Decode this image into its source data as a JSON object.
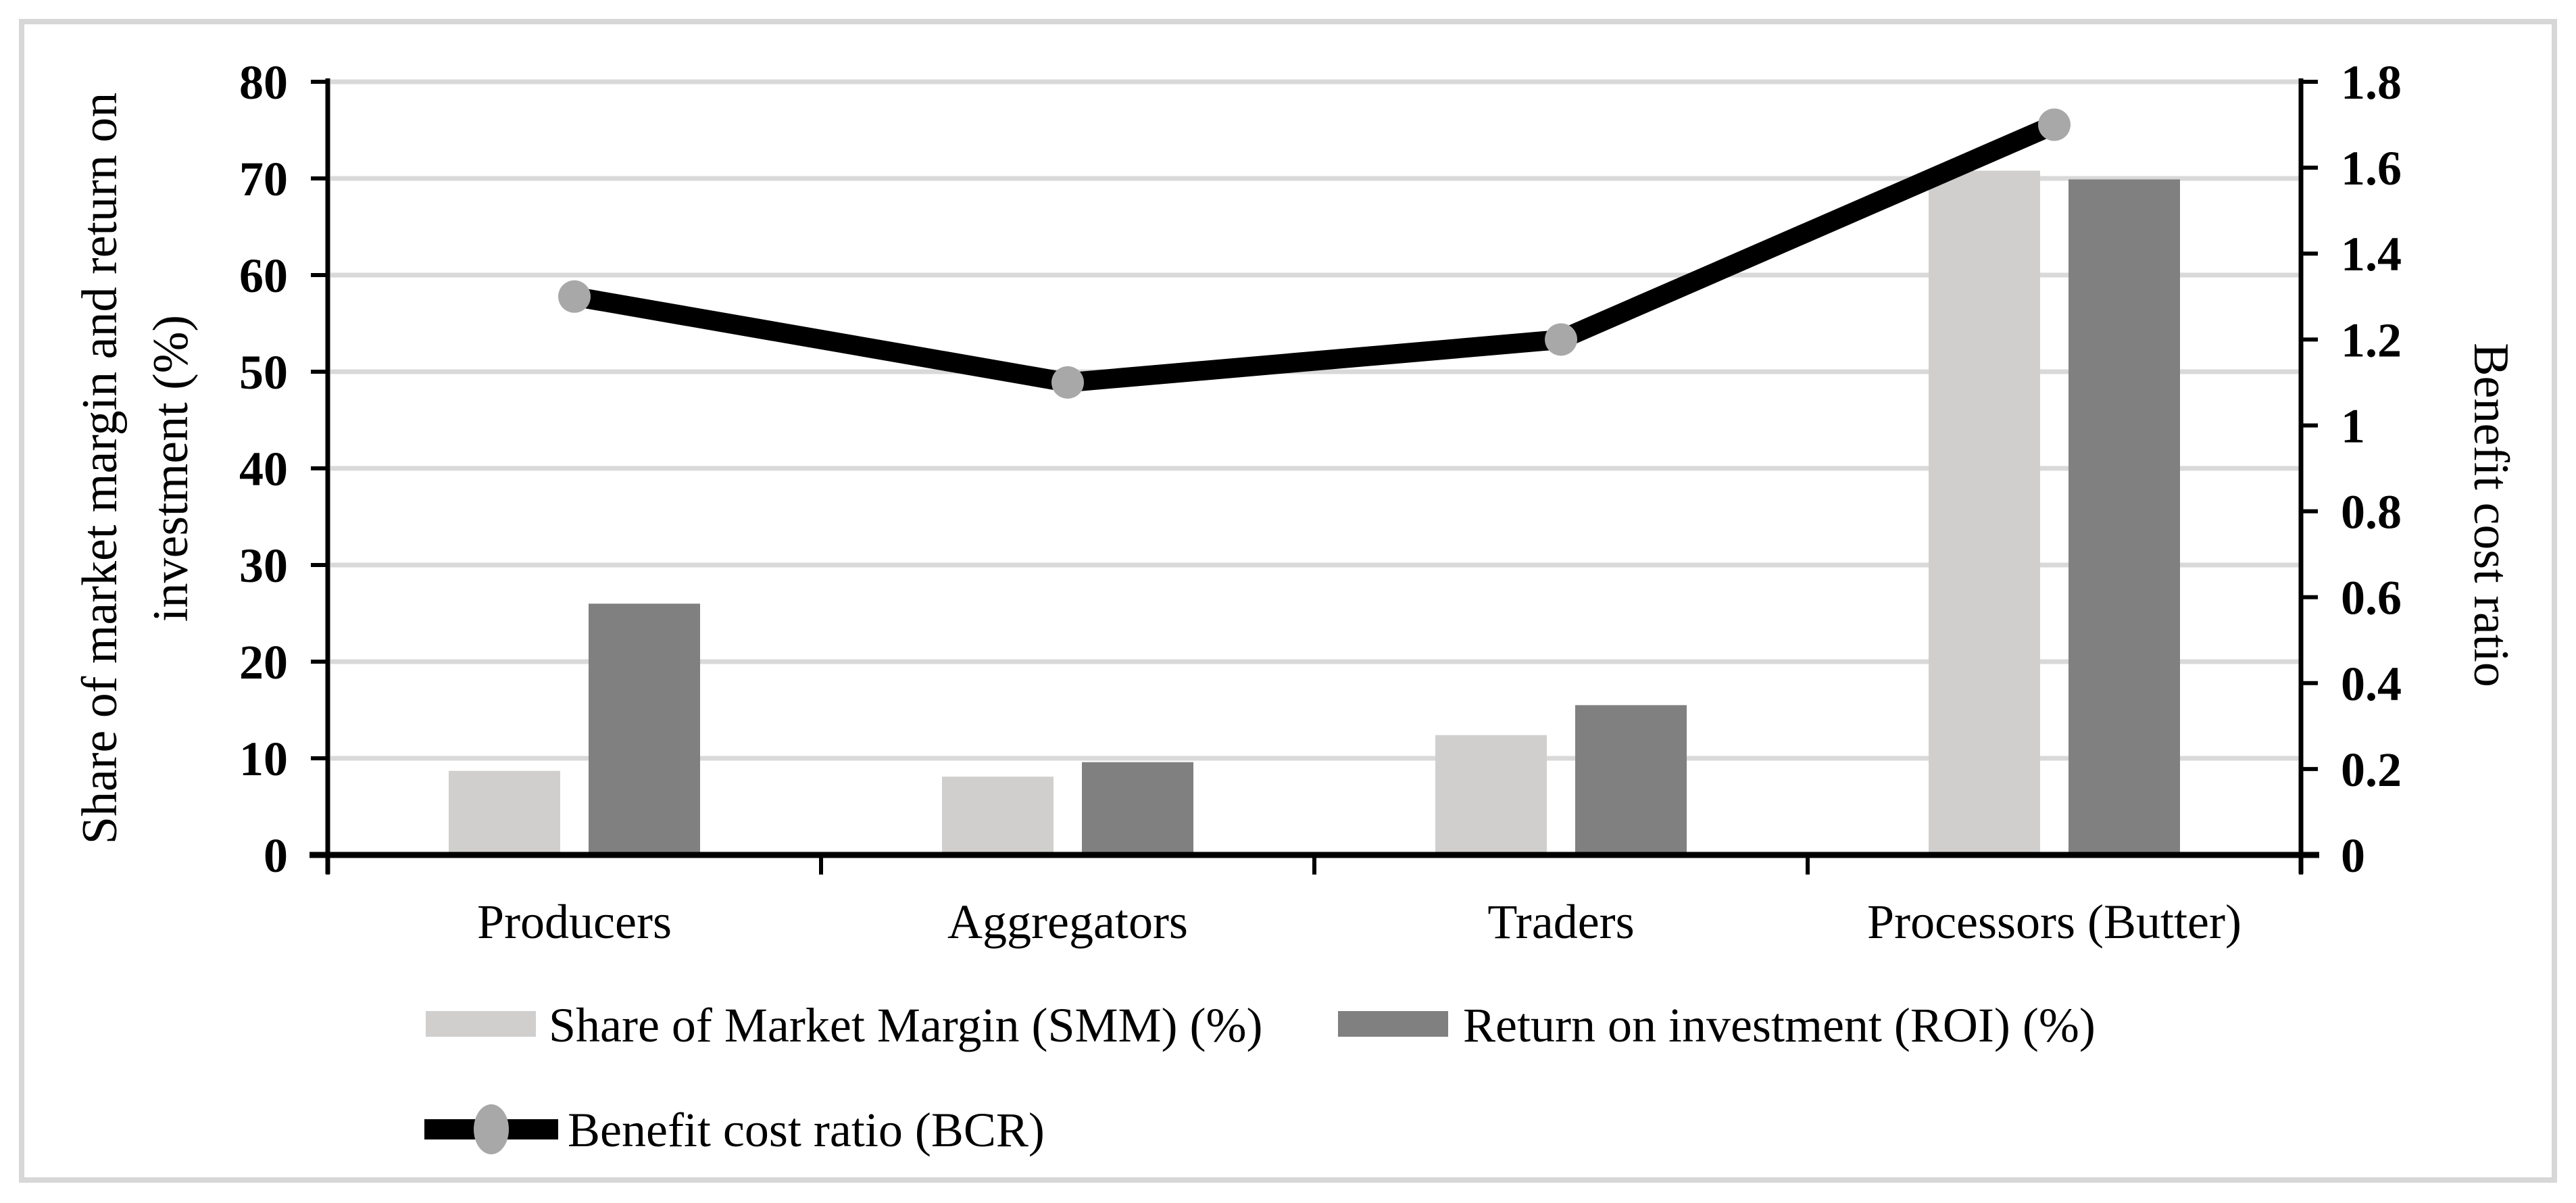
{
  "figure": {
    "background": "#ffffff",
    "border_color": "#d7d7d7"
  },
  "chart_data": {
    "type": "combo-bar-line",
    "categories": [
      "Producers",
      "Aggregators",
      "Traders",
      "Processors (Butter)"
    ],
    "series": [
      {
        "name": "Share of Market Margin (SMM) (%)",
        "type": "bar",
        "axis": "left",
        "color": "#d0cfcd",
        "values": [
          8.7,
          8.1,
          12.4,
          70.8
        ]
      },
      {
        "name": "Return on investment (ROI) (%)",
        "type": "bar",
        "axis": "left",
        "color": "#808080",
        "values": [
          26,
          9.6,
          15.5,
          69.9
        ]
      },
      {
        "name": "Benefit cost ratio (BCR)",
        "type": "line",
        "axis": "right",
        "color": "#000000",
        "marker": "circle",
        "marker_color": "#a8a8a8",
        "values": [
          1.3,
          1.1,
          1.2,
          1.7
        ]
      }
    ],
    "left_axis": {
      "label": "Share of market margin and return on investment (%)",
      "label_lines": [
        "Share of market margin and return on",
        "investment (%)"
      ],
      "min": 0,
      "max": 80,
      "step": 10,
      "tick_labels": [
        "0",
        "10",
        "20",
        "30",
        "40",
        "50",
        "60",
        "70",
        "80"
      ]
    },
    "right_axis": {
      "label": "Benefit cost ratio",
      "min": 0,
      "max": 1.8,
      "step": 0.2,
      "tick_labels": [
        "0",
        "0.2",
        "0.4",
        "0.6",
        "0.8",
        "1",
        "1.2",
        "1.4",
        "1.6",
        "1.8"
      ]
    },
    "x_axis": {
      "tick_labels": [
        "Producers",
        "Aggregators",
        "Traders",
        "Processors (Butter)"
      ]
    },
    "gridlines": {
      "show": true,
      "color": "#d9d9d9",
      "follow": "left-axis",
      "values": [
        10,
        20,
        30,
        40,
        50,
        60,
        70,
        80
      ]
    },
    "legend": {
      "position": "bottom-left",
      "entries": [
        {
          "label": "Share of Market Margin (SMM) (%)",
          "swatch": "bar",
          "color": "#d0cfcd"
        },
        {
          "label": "Return on investment (ROI) (%)",
          "swatch": "bar",
          "color": "#808080"
        },
        {
          "label": "Benefit cost ratio (BCR)",
          "swatch": "line-marker",
          "line_color": "#000000",
          "marker_color": "#a8a8a8"
        }
      ]
    }
  }
}
